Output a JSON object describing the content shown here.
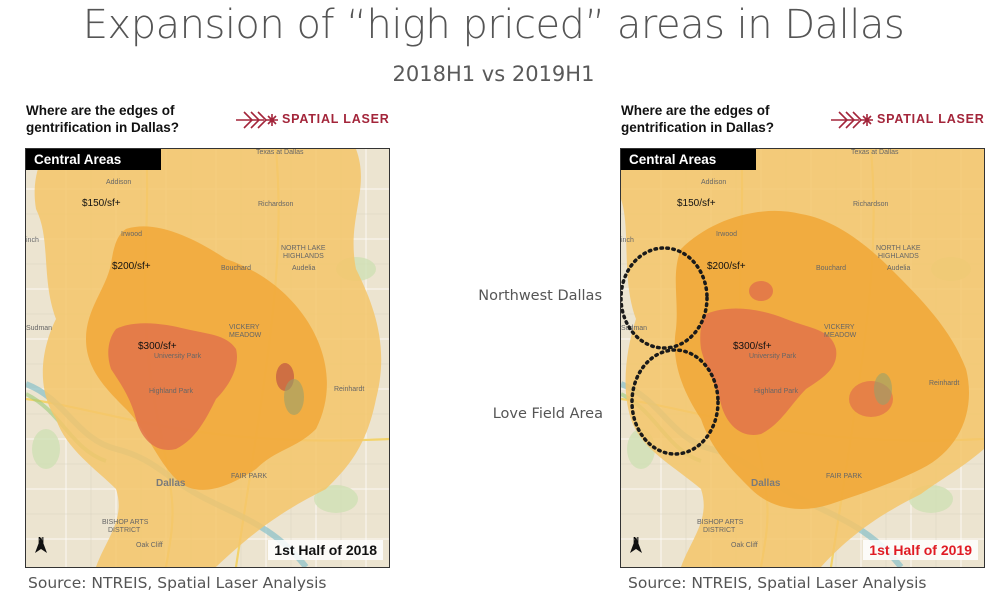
{
  "title": "Expansion of “high priced” areas in Dallas",
  "subtitle": "2018H1 vs 2019H1",
  "side_labels": {
    "northwest": "Northwest Dallas",
    "love_field": "Love Field Area"
  },
  "panels": [
    {
      "question": "Where are the edges of gentrification in Dallas?",
      "logo_text": "SPATIAL LASER",
      "area_tag": "Central Areas",
      "half_label": "1st Half of 2018",
      "price_labels": {
        "p150": "$150/sf+",
        "p200": "$200/sf+",
        "p300": "$300/sf+"
      },
      "places": {
        "addison": "Addison",
        "richardson": "Richardson",
        "north_lake": "NORTH LAKE",
        "highlands": "HIGHLANDS",
        "audelia": "Audelia",
        "university_park": "University Park",
        "highland_park": "Highland Park",
        "vickery": "VICKERY",
        "meadow": "MEADOW",
        "reinhardt": "Reinhardt",
        "dallas": "Dallas",
        "fair_park": "FAIR PARK",
        "oak_cliff": "Oak Cliff",
        "bishop": "BISHOP ARTS",
        "district": "DISTRICT",
        "irwood": "Irwood",
        "bouchard": "Bouchard",
        "sudman": "Sudman",
        "inch": "inch",
        "texas": "Texas at Dallas"
      },
      "source": "Source: NTREIS, Spatial Laser Analysis",
      "north": "N"
    },
    {
      "question": "Where are the edges of gentrification in Dallas?",
      "logo_text": "SPATIAL LASER",
      "area_tag": "Central Areas",
      "half_label": "1st Half of 2019",
      "price_labels": {
        "p150": "$150/sf+",
        "p200": "$200/sf+",
        "p300": "$300/sf+"
      },
      "places": {
        "addison": "Addison",
        "richardson": "Richardson",
        "north_lake": "NORTH LAKE",
        "highlands": "HIGHLANDS",
        "audelia": "Audelia",
        "university_park": "University Park",
        "highland_park": "Highland Park",
        "vickery": "VICKERY",
        "meadow": "MEADOW",
        "reinhardt": "Reinhardt",
        "dallas": "Dallas",
        "fair_park": "FAIR PARK",
        "oak_cliff": "Oak Cliff",
        "bishop": "BISHOP ARTS",
        "district": "DISTRICT",
        "irwood": "Irwood",
        "bouchard": "Bouchard",
        "sudman": "Sudman",
        "inch": "inch",
        "texas": "Texas at Dallas"
      },
      "source": "Source: NTREIS, Spatial Laser Analysis",
      "north": "N"
    }
  ],
  "colors": {
    "tier150": "#f5c66a",
    "tier200": "#f1a93a",
    "tier300": "#e2734a",
    "water": "#6f8d96",
    "half_2019": "#e01b24"
  }
}
